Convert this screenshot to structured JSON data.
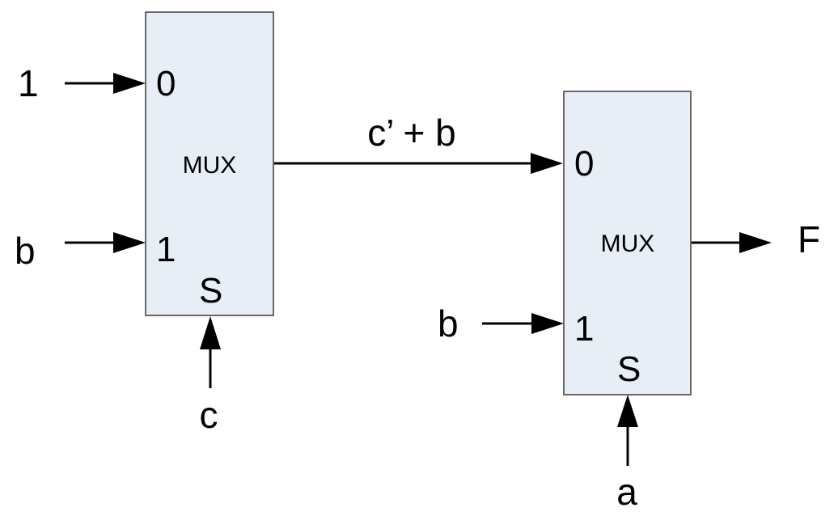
{
  "colors": {
    "box_fill": "#e8eef6",
    "wire": "#000000"
  },
  "mux1": {
    "name": "MUX",
    "input0_pin": "0",
    "input1_pin": "1",
    "select_pin": "S",
    "input0_signal": "1",
    "input1_signal": "b",
    "select_signal": "c"
  },
  "mux2": {
    "name": "MUX",
    "input0_pin": "0",
    "input1_pin": "1",
    "select_pin": "S",
    "input1_signal": "b",
    "select_signal": "a",
    "output_signal": "F"
  },
  "intermediate": {
    "label": "c’ + b"
  }
}
